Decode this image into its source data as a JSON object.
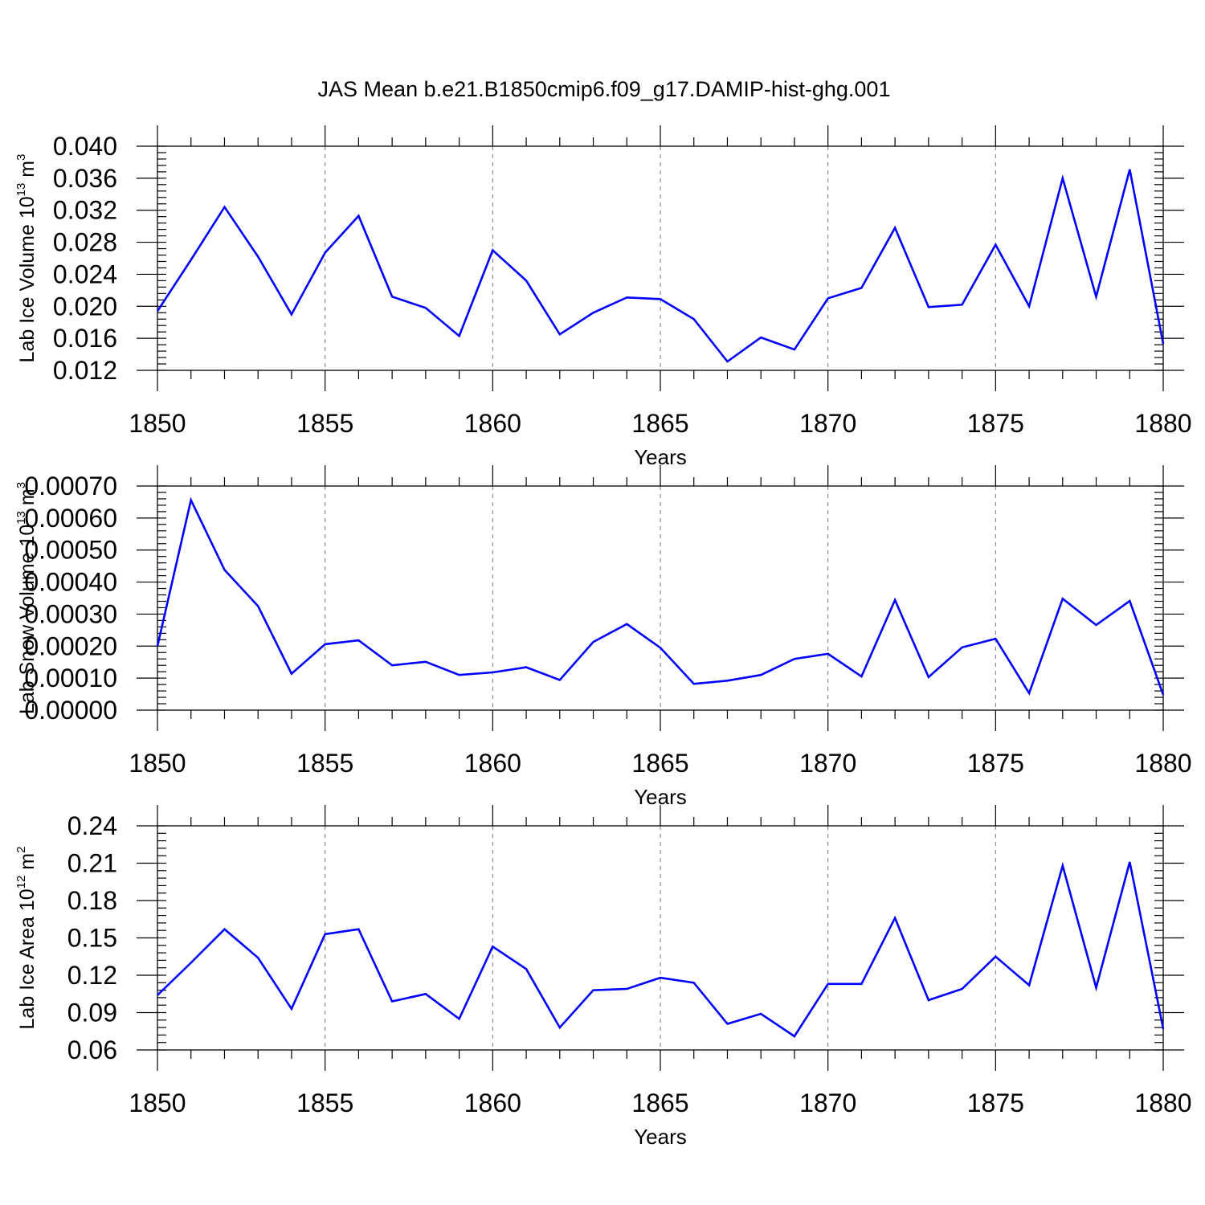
{
  "title": "JAS Mean b.e21.B1850cmip6.f09_g17.DAMIP-hist-ghg.001",
  "colors": {
    "series": "#0000ff",
    "grid": "#777777",
    "axis": "#000000"
  },
  "chart_data": [
    {
      "type": "line",
      "ylabel": "Lab Ice Volume 10",
      "ylabel_exp": "13",
      "ylabel_unit": "m",
      "ylabel_unit_exp": "3",
      "xlabel": "Years",
      "xlim": [
        1850,
        1880
      ],
      "ylim": [
        0.012,
        0.04
      ],
      "x_ticks": [
        1850,
        1855,
        1860,
        1865,
        1870,
        1875,
        1880
      ],
      "x_tick_labels": [
        "1850",
        "1855",
        "1860",
        "1865",
        "1870",
        "1875",
        "1880"
      ],
      "y_ticks": [
        0.012,
        0.016,
        0.02,
        0.024,
        0.028,
        0.032,
        0.036,
        0.04
      ],
      "y_tick_labels": [
        "0.012",
        "0.016",
        "0.020",
        "0.024",
        "0.028",
        "0.032",
        "0.036",
        "0.040"
      ],
      "y_minor_step": 0.0008,
      "x_grid": [
        1855,
        1860,
        1865,
        1870,
        1875
      ],
      "x": [
        1850,
        1851,
        1852,
        1853,
        1854,
        1855,
        1856,
        1857,
        1858,
        1859,
        1860,
        1861,
        1862,
        1863,
        1864,
        1865,
        1866,
        1867,
        1868,
        1869,
        1870,
        1871,
        1872,
        1873,
        1874,
        1875,
        1876,
        1877,
        1878,
        1879,
        1880
      ],
      "series": [
        {
          "name": "Lab Ice Volume",
          "values": [
            0.0194,
            0.0258,
            0.0324,
            0.0262,
            0.019,
            0.0267,
            0.0313,
            0.0212,
            0.0198,
            0.0163,
            0.027,
            0.0232,
            0.0165,
            0.0192,
            0.0211,
            0.0209,
            0.0184,
            0.0131,
            0.0161,
            0.0146,
            0.021,
            0.0223,
            0.0298,
            0.0199,
            0.0202,
            0.0277,
            0.02,
            0.036,
            0.0212,
            0.0371,
            0.0153
          ]
        }
      ]
    },
    {
      "type": "line",
      "ylabel": "Lab Snow Volume 10",
      "ylabel_exp": "13",
      "ylabel_unit": "m",
      "ylabel_unit_exp": "3",
      "xlabel": "Years",
      "xlim": [
        1850,
        1880
      ],
      "ylim": [
        0.0,
        0.0007
      ],
      "x_ticks": [
        1850,
        1855,
        1860,
        1865,
        1870,
        1875,
        1880
      ],
      "x_tick_labels": [
        "1850",
        "1855",
        "1860",
        "1865",
        "1870",
        "1875",
        "1880"
      ],
      "y_ticks": [
        0.0,
        0.0001,
        0.0002,
        0.0003,
        0.0004,
        0.0005,
        0.0006,
        0.0007
      ],
      "y_tick_labels": [
        "0.00000",
        "0.00010",
        "0.00020",
        "0.00030",
        "0.00040",
        "0.00050",
        "0.00060",
        "0.00070"
      ],
      "y_minor_step": 2e-05,
      "x_grid": [
        1855,
        1860,
        1865,
        1870,
        1875
      ],
      "x": [
        1850,
        1851,
        1852,
        1853,
        1854,
        1855,
        1856,
        1857,
        1858,
        1859,
        1860,
        1861,
        1862,
        1863,
        1864,
        1865,
        1866,
        1867,
        1868,
        1869,
        1870,
        1871,
        1872,
        1873,
        1874,
        1875,
        1876,
        1877,
        1878,
        1879,
        1880
      ],
      "series": [
        {
          "name": "Lab Snow Volume",
          "values": [
            0.0002,
            0.000656,
            0.000438,
            0.000325,
            0.000114,
            0.000206,
            0.000218,
            0.00014,
            0.000151,
            0.00011,
            0.000118,
            0.000134,
            9.4e-05,
            0.000213,
            0.000269,
            0.000195,
            8.2e-05,
            9.2e-05,
            0.00011,
            0.00016,
            0.000176,
            0.000105,
            0.000344,
            0.000103,
            0.000196,
            0.000223,
            5.3e-05,
            0.000348,
            0.000266,
            0.000341,
            4.8e-05
          ]
        }
      ]
    },
    {
      "type": "line",
      "ylabel": "Lab Ice Area 10",
      "ylabel_exp": "12",
      "ylabel_unit": "m",
      "ylabel_unit_exp": "2",
      "xlabel": "Years",
      "xlim": [
        1850,
        1880
      ],
      "ylim": [
        0.06,
        0.24
      ],
      "x_ticks": [
        1850,
        1855,
        1860,
        1865,
        1870,
        1875,
        1880
      ],
      "x_tick_labels": [
        "1850",
        "1855",
        "1860",
        "1865",
        "1870",
        "1875",
        "1880"
      ],
      "y_ticks": [
        0.06,
        0.09,
        0.12,
        0.15,
        0.18,
        0.21,
        0.24
      ],
      "y_tick_labels": [
        "0.06",
        "0.09",
        "0.12",
        "0.15",
        "0.18",
        "0.21",
        "0.24"
      ],
      "y_minor_step": 0.006,
      "x_grid": [
        1855,
        1860,
        1865,
        1870,
        1875
      ],
      "x": [
        1850,
        1851,
        1852,
        1853,
        1854,
        1855,
        1856,
        1857,
        1858,
        1859,
        1860,
        1861,
        1862,
        1863,
        1864,
        1865,
        1866,
        1867,
        1868,
        1869,
        1870,
        1871,
        1872,
        1873,
        1874,
        1875,
        1876,
        1877,
        1878,
        1879,
        1880
      ],
      "series": [
        {
          "name": "Lab Ice Area",
          "values": [
            0.104,
            0.13,
            0.157,
            0.134,
            0.093,
            0.153,
            0.157,
            0.099,
            0.105,
            0.085,
            0.143,
            0.125,
            0.078,
            0.108,
            0.109,
            0.118,
            0.114,
            0.081,
            0.089,
            0.071,
            0.113,
            0.113,
            0.166,
            0.1,
            0.109,
            0.135,
            0.112,
            0.208,
            0.11,
            0.211,
            0.077
          ]
        }
      ]
    }
  ]
}
